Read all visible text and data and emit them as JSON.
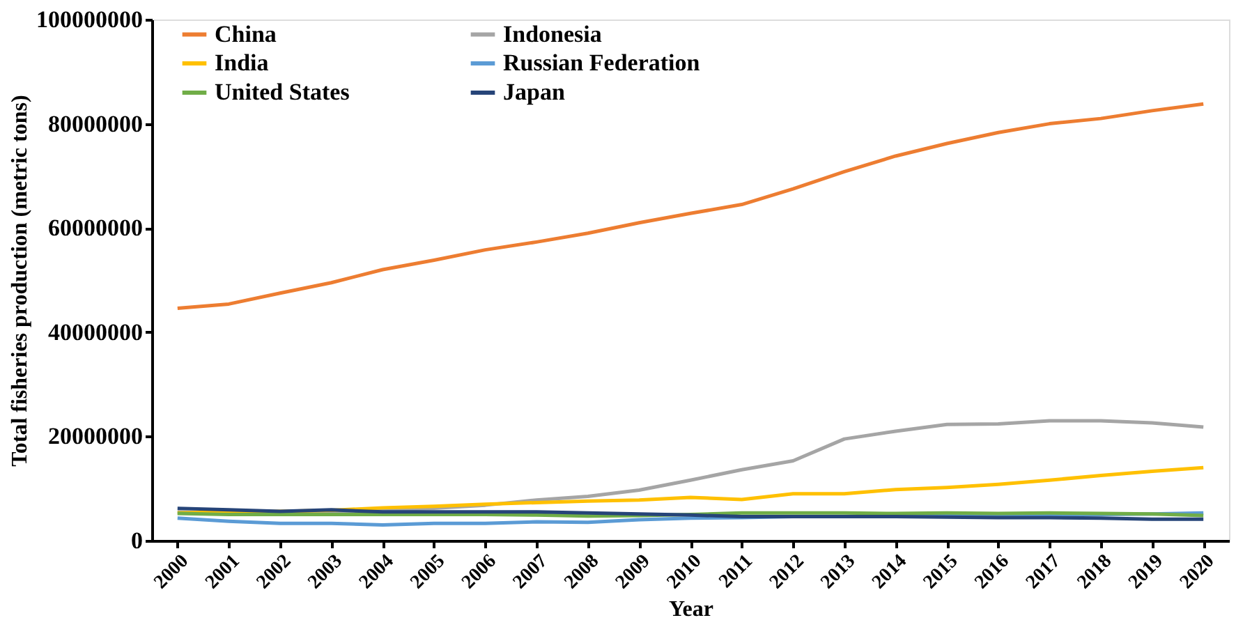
{
  "chart_data": {
    "type": "line",
    "xlabel": "Year",
    "ylabel": "Total fisheries production (metric tons)",
    "categories": [
      "2000",
      "2001",
      "2002",
      "2003",
      "2004",
      "2005",
      "2006",
      "2007",
      "2008",
      "2009",
      "2010",
      "2011",
      "2012",
      "2013",
      "2014",
      "2015",
      "2016",
      "2017",
      "2018",
      "2019",
      "2020"
    ],
    "series": [
      {
        "name": "China",
        "color": "#ed7d31",
        "values": [
          44600000,
          45400000,
          47500000,
          49500000,
          52000000,
          53800000,
          55800000,
          57300000,
          59000000,
          61000000,
          62800000,
          64500000,
          67500000,
          70800000,
          73800000,
          76200000,
          78300000,
          80000000,
          81000000,
          82500000,
          83800000
        ]
      },
      {
        "name": "Indonesia",
        "color": "#a5a5a5",
        "values": [
          5500000,
          5300000,
          5300000,
          5600000,
          5800000,
          6200000,
          6800000,
          7800000,
          8500000,
          9700000,
          11600000,
          13600000,
          15300000,
          19500000,
          21000000,
          22300000,
          22400000,
          23000000,
          23000000,
          22600000,
          21800000
        ]
      },
      {
        "name": "India",
        "color": "#ffc000",
        "values": [
          5300000,
          5500000,
          5600000,
          5800000,
          6300000,
          6600000,
          7000000,
          7300000,
          7600000,
          7800000,
          8300000,
          7900000,
          9000000,
          9000000,
          9800000,
          10200000,
          10800000,
          11600000,
          12500000,
          13300000,
          14000000
        ]
      },
      {
        "name": "Russian Federation",
        "color": "#5b9bd5",
        "values": [
          4300000,
          3700000,
          3300000,
          3300000,
          3000000,
          3300000,
          3300000,
          3600000,
          3500000,
          4000000,
          4300000,
          4400000,
          4600000,
          4600000,
          4700000,
          4800000,
          4900000,
          5000000,
          5000000,
          5100000,
          5300000
        ]
      },
      {
        "name": "United States",
        "color": "#70ad47",
        "values": [
          5200000,
          5000000,
          5000000,
          5000000,
          5000000,
          5000000,
          5000000,
          4900000,
          4700000,
          4800000,
          5000000,
          5300000,
          5300000,
          5300000,
          5200000,
          5300000,
          5200000,
          5300000,
          5200000,
          5100000,
          4800000
        ]
      },
      {
        "name": "Japan",
        "color": "#264478",
        "values": [
          6200000,
          5900000,
          5600000,
          5900000,
          5500000,
          5500000,
          5500000,
          5500000,
          5300000,
          5100000,
          4900000,
          4600000,
          4600000,
          4600000,
          4600000,
          4500000,
          4400000,
          4400000,
          4300000,
          4100000,
          4100000
        ]
      }
    ],
    "ylim": [
      0,
      100000000
    ],
    "yticks": [
      0,
      20000000,
      40000000,
      60000000,
      80000000,
      100000000
    ],
    "grid": false,
    "legend": "top left",
    "marker": "none",
    "line_style": "solid"
  }
}
